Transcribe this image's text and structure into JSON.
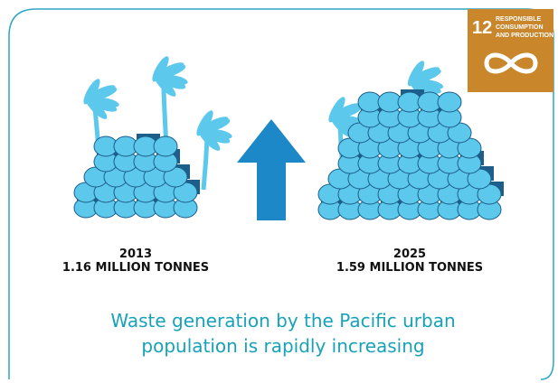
{
  "badge": {
    "number": "12",
    "lines": [
      "RESPONSIBLE",
      "CONSUMPTION",
      "AND PRODUCTION"
    ]
  },
  "panels": [
    {
      "year": "2013",
      "amount": "1.16 MILLION TONNES"
    },
    {
      "year": "2025",
      "amount": "1.59 MILLION TONNES"
    }
  ],
  "caption": [
    "Waste generation by the Pacific urban",
    "population is rapidly increasing"
  ]
}
